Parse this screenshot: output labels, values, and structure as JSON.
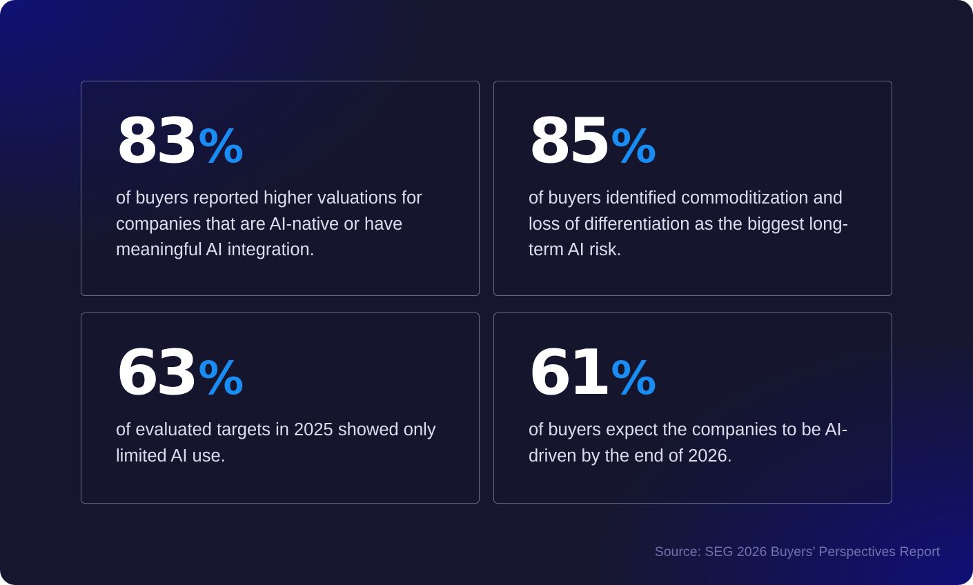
{
  "cards": [
    {
      "value": "83",
      "unit": "%",
      "description": "of buyers reported higher valuations for companies that are AI-native or have meaningful AI integration."
    },
    {
      "value": "85",
      "unit": "%",
      "description": "of buyers identified commoditization and loss of differentiation as the biggest long-term AI risk."
    },
    {
      "value": "63",
      "unit": "%",
      "description": "of evaluated targets in 2025 showed only limited AI use."
    },
    {
      "value": "61",
      "unit": "%",
      "description": "of buyers expect the companies to be AI-driven by the end of 2026."
    }
  ],
  "source": "Source: SEG 2026 Buyers’ Perspectives Report",
  "colors": {
    "background": "#16172e",
    "accent": "#1a8cf2",
    "stat_text": "#ffffff",
    "body_text": "#dcdcec",
    "source_text": "#6f72ac",
    "card_border": "#aab2d7"
  }
}
